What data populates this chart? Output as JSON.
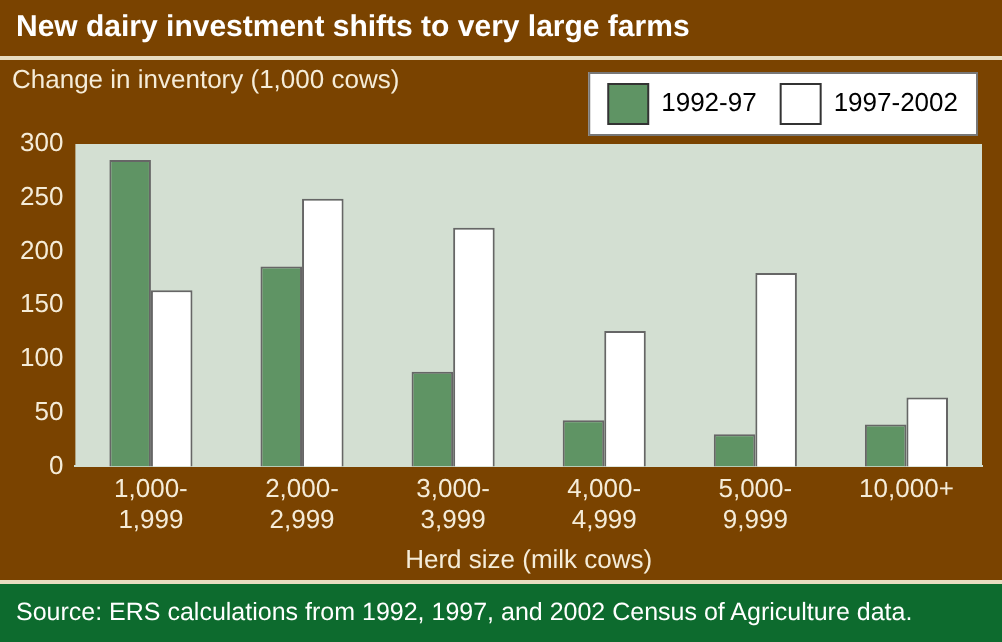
{
  "chart_data": {
    "type": "bar",
    "title": "New dairy investment shifts to very large farms",
    "ylabel": "Change in inventory (1,000 cows)",
    "xlabel": "Herd size (milk cows)",
    "categories": [
      "1,000-1,999",
      "2,000-2,999",
      "3,000-3,999",
      "4,000-4,999",
      "5,000-9,999",
      "10,000+"
    ],
    "series": [
      {
        "name": "1992-97",
        "color": "#5f9464",
        "values": [
          285,
          186,
          88,
          43,
          30,
          39
        ]
      },
      {
        "name": "1997-2002",
        "color": "#ffffff",
        "values": [
          164,
          249,
          222,
          126,
          180,
          64
        ]
      }
    ],
    "ylim": [
      0,
      300
    ],
    "yticks": [
      0,
      50,
      100,
      150,
      200,
      250,
      300
    ],
    "grid": false,
    "legend": "top right",
    "annotations": [
      "Source:  ERS calculations from 1992, 1997, and 2002 Census of Agriculture data."
    ]
  }
}
